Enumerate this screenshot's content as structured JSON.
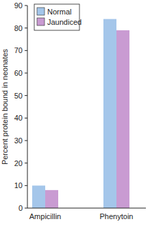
{
  "chart_data": {
    "type": "bar",
    "y_label": "Percent protein bound in neonates",
    "categories": [
      "Ampicillin",
      "Phenytoin"
    ],
    "series": [
      {
        "name": "Normal",
        "color": "#a4c6ea",
        "values": [
          10,
          84
        ]
      },
      {
        "name": "Jaundiced",
        "color": "#c99bd2",
        "values": [
          8,
          79
        ]
      }
    ],
    "ylim": [
      0,
      90
    ],
    "yticks": [
      0,
      10,
      20,
      30,
      40,
      50,
      60,
      70,
      80,
      90
    ],
    "grid": false,
    "legend": "upper left"
  }
}
